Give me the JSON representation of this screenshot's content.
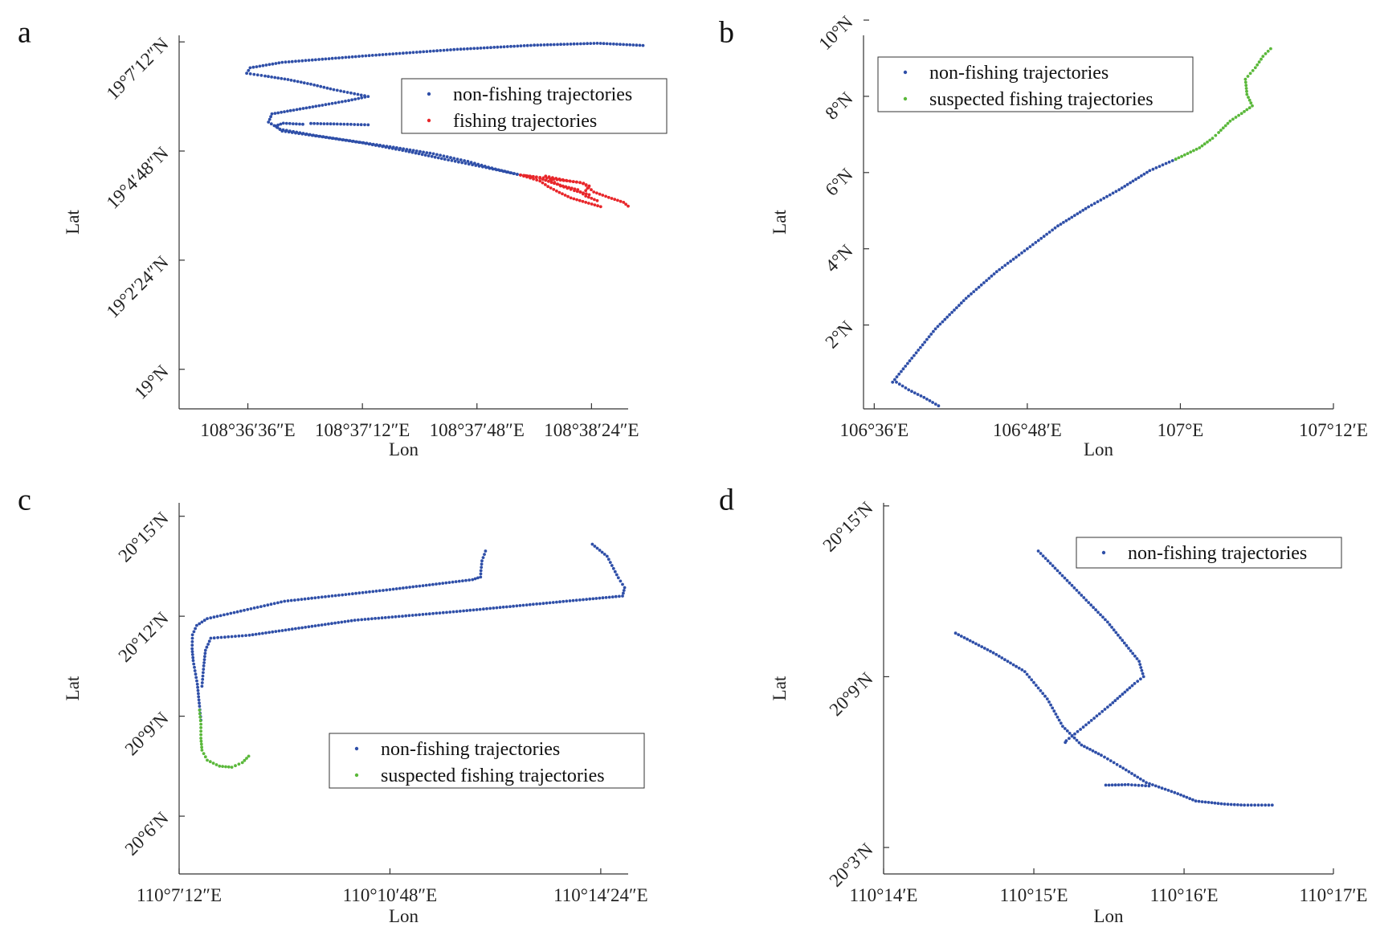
{
  "colors": {
    "blue": "#2f4fa8",
    "red": "#e8262a",
    "green": "#5ab83a"
  },
  "chart_data": [
    {
      "id": "a",
      "panel_label": "a",
      "type": "scatter",
      "xlabel": "Lon",
      "ylabel": "Lat",
      "xlim": [
        108.604,
        108.6432
      ],
      "ylim": [
        18.9855,
        19.1224
      ],
      "xticks": [
        {
          "value": 108.61,
          "label": "108°36′36″E"
        },
        {
          "value": 108.62,
          "label": "108°37′12″E"
        },
        {
          "value": 108.63,
          "label": "108°37′48″E"
        },
        {
          "value": 108.64,
          "label": "108°38′24″E"
        }
      ],
      "yticks": [
        {
          "value": 19.0,
          "label": "19°N"
        },
        {
          "value": 19.04,
          "label": "19°2′24″N"
        },
        {
          "value": 19.08,
          "label": "19°4′48″N"
        },
        {
          "value": 19.12,
          "label": "19°7′12″N"
        }
      ],
      "legend": {
        "position": "top-right"
      },
      "series": [
        {
          "name": "non-fishing trajectories",
          "color": "blue",
          "paths": [
            [
              [
                108.6445,
                19.1187
              ],
              [
                108.6405,
                19.1195
              ],
              [
                108.635,
                19.1188
              ],
              [
                108.628,
                19.1172
              ],
              [
                108.62,
                19.1148
              ],
              [
                108.613,
                19.1125
              ],
              [
                108.6102,
                19.1105
              ],
              [
                108.6099,
                19.1085
              ],
              [
                108.6115,
                19.1075
              ],
              [
                108.6135,
                19.1062
              ],
              [
                108.6155,
                19.1045
              ],
              [
                108.6175,
                19.1025
              ],
              [
                108.6205,
                19.1
              ],
              [
                108.6188,
                19.0985
              ],
              [
                108.6165,
                19.0968
              ],
              [
                108.614,
                19.095
              ],
              [
                108.6121,
                19.0936
              ],
              [
                108.6118,
                19.0906
              ],
              [
                108.6128,
                19.088
              ],
              [
                108.616,
                19.0856
              ],
              [
                108.6195,
                19.0834
              ],
              [
                108.623,
                19.0812
              ],
              [
                108.6262,
                19.079
              ],
              [
                108.6292,
                19.0762
              ],
              [
                108.6316,
                19.0734
              ],
              [
                108.6338,
                19.0712
              ]
            ],
            [
              [
                108.6338,
                19.0712
              ],
              [
                108.6305,
                19.0742
              ],
              [
                108.6272,
                19.077
              ],
              [
                108.6238,
                19.08
              ],
              [
                108.62,
                19.083
              ],
              [
                108.6165,
                19.0852
              ],
              [
                108.613,
                19.0873
              ],
              [
                108.6124,
                19.0892
              ],
              [
                108.6131,
                19.0902
              ],
              [
                108.6148,
                19.0898
              ]
            ],
            [
              [
                108.6155,
                19.0901
              ],
              [
                108.6178,
                19.0899
              ],
              [
                108.6205,
                19.0896
              ]
            ]
          ]
        },
        {
          "name": "fishing trajectories",
          "color": "red",
          "paths": [
            [
              [
                108.6338,
                19.0712
              ],
              [
                108.6355,
                19.069
              ],
              [
                108.6362,
                19.067
              ],
              [
                108.6372,
                19.0648
              ],
              [
                108.6382,
                19.0628
              ],
              [
                108.6395,
                19.0612
              ],
              [
                108.6408,
                19.0596
              ]
            ],
            [
              [
                108.6338,
                19.0712
              ],
              [
                108.6352,
                19.0705
              ],
              [
                108.637,
                19.0695
              ],
              [
                108.639,
                19.0685
              ],
              [
                108.6398,
                19.0672
              ],
              [
                108.6395,
                19.0655
              ]
            ],
            [
              [
                108.6342,
                19.071
              ],
              [
                108.6355,
                19.07
              ],
              [
                108.6365,
                19.0685
              ],
              [
                108.6375,
                19.0672
              ],
              [
                108.6388,
                19.0658
              ],
              [
                108.6395,
                19.0635
              ],
              [
                108.6405,
                19.0618
              ]
            ],
            [
              [
                108.636,
                19.0708
              ],
              [
                108.6378,
                19.0692
              ],
              [
                108.6393,
                19.0682
              ],
              [
                108.6402,
                19.065
              ],
              [
                108.6415,
                19.063
              ],
              [
                108.6428,
                19.0612
              ],
              [
                108.6432,
                19.0598
              ]
            ],
            [
              [
                108.6365,
                19.0692
              ],
              [
                108.6373,
                19.0672
              ],
              [
                108.6385,
                19.0655
              ],
              [
                108.6398,
                19.064
              ]
            ]
          ]
        }
      ]
    },
    {
      "id": "b",
      "panel_label": "b",
      "type": "scatter",
      "xlabel": "Lon",
      "ylabel": "Lat",
      "xlim": [
        106.586,
        107.2
      ],
      "ylim": [
        -0.2,
        9.6
      ],
      "xticks": [
        {
          "value": 106.6,
          "label": "106°36′E"
        },
        {
          "value": 106.8,
          "label": "106°48′E"
        },
        {
          "value": 107.0,
          "label": "107°E"
        },
        {
          "value": 107.2,
          "label": "107°12′E"
        }
      ],
      "yticks": [
        {
          "value": 2,
          "label": "2°N"
        },
        {
          "value": 4,
          "label": "4°N"
        },
        {
          "value": 6,
          "label": "6°N"
        },
        {
          "value": 8,
          "label": "8°N"
        },
        {
          "value": 10,
          "label": "10°N"
        }
      ],
      "legend": {
        "position": "top-left"
      },
      "series": [
        {
          "name": "non-fishing trajectories",
          "color": "blue",
          "paths": [
            [
              [
                106.624,
                0.5
              ],
              [
                106.68,
                1.9
              ],
              [
                106.72,
                2.7
              ],
              [
                106.76,
                3.4
              ],
              [
                106.8,
                4.0
              ],
              [
                106.84,
                4.6
              ],
              [
                106.88,
                5.1
              ],
              [
                106.92,
                5.55
              ],
              [
                106.96,
                6.05
              ],
              [
                106.994,
                6.35
              ]
            ],
            [
              [
                106.629,
                0.5
              ],
              [
                106.645,
                0.3
              ],
              [
                106.665,
                0.1
              ],
              [
                106.684,
                -0.12
              ]
            ]
          ]
        },
        {
          "name": "suspected fishing trajectories",
          "color": "green",
          "paths": [
            [
              [
                106.994,
                6.35
              ],
              [
                107.025,
                6.65
              ],
              [
                107.042,
                6.9
              ],
              [
                107.05,
                7.05
              ],
              [
                107.065,
                7.35
              ],
              [
                107.08,
                7.55
              ],
              [
                107.094,
                7.75
              ],
              [
                107.087,
                8.05
              ],
              [
                107.085,
                8.45
              ],
              [
                107.098,
                8.75
              ],
              [
                107.108,
                9.05
              ],
              [
                107.118,
                9.25
              ]
            ]
          ]
        }
      ]
    },
    {
      "id": "c",
      "panel_label": "c",
      "type": "scatter",
      "xlabel": "Lon",
      "ylabel": "Lat",
      "xlim": [
        110.12,
        110.2478
      ],
      "ylim": [
        20.0711,
        20.2567
      ],
      "xticks": [
        {
          "value": 110.12,
          "label": "110°7′12″E"
        },
        {
          "value": 110.18,
          "label": "110°10′48″E"
        },
        {
          "value": 110.24,
          "label": "110°14′24″E"
        }
      ],
      "yticks": [
        {
          "value": 20.1,
          "label": "20°6′N"
        },
        {
          "value": 20.15,
          "label": "20°9′N"
        },
        {
          "value": 20.2,
          "label": "20°12′N"
        },
        {
          "value": 20.25,
          "label": "20°15′N"
        }
      ],
      "legend": {
        "position": "bottom-right"
      },
      "series": [
        {
          "name": "non-fishing trajectories",
          "color": "blue",
          "paths": [
            [
              [
                110.2072,
                20.2326
              ],
              [
                110.2062,
                20.2277
              ],
              [
                110.2059,
                20.2228
              ],
              [
                110.2058,
                20.2196
              ],
              [
                110.2035,
                20.2183
              ],
              [
                110.18,
                20.2133
              ],
              [
                110.15,
                20.2075
              ],
              [
                110.128,
                20.1988
              ],
              [
                110.125,
                20.1954
              ],
              [
                110.1238,
                20.1907
              ],
              [
                110.1237,
                20.1838
              ],
              [
                110.124,
                20.1778
              ],
              [
                110.1252,
                20.166
              ],
              [
                110.1258,
                20.155
              ],
              [
                110.1262,
                20.148
              ]
            ],
            [
              [
                110.2376,
                20.236
              ],
              [
                110.2418,
                20.23
              ],
              [
                110.245,
                20.2192
              ],
              [
                110.2468,
                20.2143
              ],
              [
                110.2462,
                20.2101
              ],
              [
                110.235,
                20.2083
              ],
              [
                110.2,
                20.2025
              ],
              [
                110.17,
                20.198
              ],
              [
                110.14,
                20.1905
              ],
              [
                110.129,
                20.189
              ],
              [
                110.1275,
                20.183
              ],
              [
                110.127,
                20.1752
              ],
              [
                110.1265,
                20.165
              ]
            ]
          ]
        },
        {
          "name": "suspected fishing trajectories",
          "color": "green",
          "paths": [
            [
              [
                110.1258,
                20.153
              ],
              [
                110.1262,
                20.146
              ],
              [
                110.1262,
                20.139
              ],
              [
                110.1265,
                20.133
              ],
              [
                110.128,
                20.128
              ],
              [
                110.1315,
                20.125
              ],
              [
                110.135,
                20.1245
              ],
              [
                110.138,
                20.1268
              ],
              [
                110.1398,
                20.13
              ]
            ]
          ]
        }
      ]
    },
    {
      "id": "d",
      "panel_label": "d",
      "type": "scatter",
      "xlabel": "Lon",
      "ylabel": "Lat",
      "xlim": [
        110.2333,
        110.2833
      ],
      "ylim": [
        20.0345,
        20.2518
      ],
      "xticks": [
        {
          "value": 110.2333,
          "label": "110°14′E"
        },
        {
          "value": 110.25,
          "label": "110°15′E"
        },
        {
          "value": 110.2667,
          "label": "110°16′E"
        },
        {
          "value": 110.2833,
          "label": "110°17′E"
        }
      ],
      "yticks": [
        {
          "value": 20.05,
          "label": "20°3′N"
        },
        {
          "value": 20.15,
          "label": "20°9′N"
        },
        {
          "value": 20.25,
          "label": "20°15′N"
        }
      ],
      "legend": {
        "position": "top-right"
      },
      "series": [
        {
          "name": "non-fishing trajectories",
          "color": "blue",
          "paths": [
            [
              [
                110.2505,
                20.2236
              ],
              [
                110.2545,
                20.202
              ],
              [
                110.2582,
                20.182
              ],
              [
                110.2617,
                20.159
              ],
              [
                110.2622,
                20.15
              ],
              [
                110.2612,
                20.146
              ],
              [
                110.2585,
                20.1335
              ],
              [
                110.2555,
                20.1205
              ],
              [
                110.2536,
                20.1125
              ],
              [
                110.2535,
                20.1115
              ]
            ],
            [
              [
                110.2413,
                20.1755
              ],
              [
                110.2455,
                20.164
              ],
              [
                110.249,
                20.153
              ],
              [
                110.2515,
                20.137
              ],
              [
                110.2532,
                20.121
              ],
              [
                110.2553,
                20.11
              ],
              [
                110.2575,
                20.104
              ],
              [
                110.2596,
                20.0975
              ],
              [
                110.2625,
                20.088
              ],
              [
                110.266,
                20.0815
              ],
              [
                110.268,
                20.0772
              ],
              [
                110.2712,
                20.0754
              ],
              [
                110.2734,
                20.0748
              ],
              [
                110.2765,
                20.0748
              ]
            ],
            [
              [
                110.258,
                20.0865
              ],
              [
                110.2605,
                20.0868
              ],
              [
                110.2628,
                20.086
              ]
            ]
          ]
        }
      ]
    }
  ]
}
